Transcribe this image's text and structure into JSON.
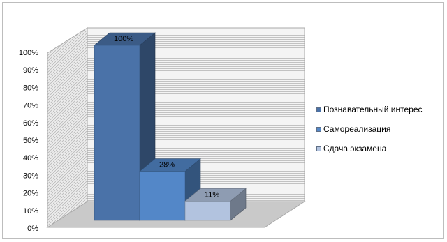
{
  "chart_data": {
    "type": "bar",
    "three_d": true,
    "categories": [
      ""
    ],
    "series": [
      {
        "name": "Познавательный интерес",
        "values": [
          100
        ],
        "label": "100%",
        "color": "#4a72a8"
      },
      {
        "name": "Самореализация",
        "values": [
          28
        ],
        "label": "28%",
        "color": "#5387c8"
      },
      {
        "name": "Сдача экзамена",
        "values": [
          11
        ],
        "label": "11%",
        "color": "#b2c3df"
      }
    ],
    "y_ticks": [
      "0%",
      "10%",
      "20%",
      "30%",
      "40%",
      "50%",
      "60%",
      "70%",
      "80%",
      "90%",
      "100%"
    ],
    "ylim": [
      0,
      100
    ],
    "grid": true,
    "legend": "right",
    "title": "",
    "xlabel": "",
    "ylabel": ""
  }
}
